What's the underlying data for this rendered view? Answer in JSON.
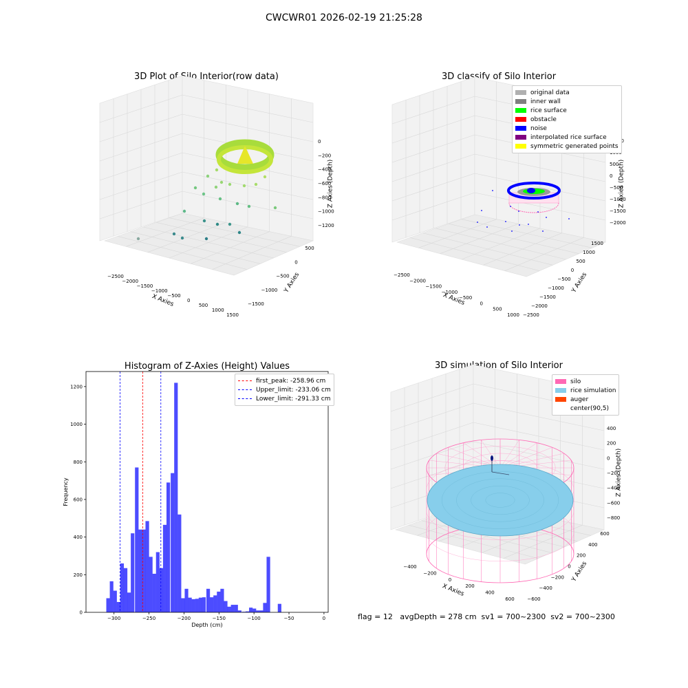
{
  "suptitle": "CWCWR01 2026-02-19 21:25:28",
  "panels": {
    "raw": {
      "title": "3D Plot of Silo Interior(row data)",
      "xlabel": "X Axies",
      "ylabel": "Y Axies",
      "zlabel": "Z Axies (Depth)",
      "xticks": [
        "−2500",
        "−2000",
        "−1500",
        "−1000",
        "−500",
        "0",
        "500",
        "1000",
        "1500"
      ],
      "yticks": [
        "500",
        "0",
        "−500",
        "−1000",
        "−1500"
      ],
      "zticks": [
        "0",
        "−200",
        "−400",
        "−600",
        "−800",
        "−1000",
        "−1200"
      ]
    },
    "classify": {
      "title": "3D classify of Silo Interior",
      "xlabel": "X Axies",
      "ylabel": "Y Axies",
      "zlabel": "Z Axies (Depth)",
      "xticks": [
        "−2500",
        "−2000",
        "−1500",
        "−1000",
        "−500",
        "0",
        "500",
        "1000"
      ],
      "yticks": [
        "1500",
        "1000",
        "500",
        "0",
        "−500",
        "−1000",
        "−1500",
        "−2000",
        "−2500"
      ],
      "zticks": [
        "1000",
        "500",
        "0",
        "−500",
        "−1000",
        "−1500",
        "−2000"
      ],
      "ztop_partial": "00",
      "legend": [
        {
          "label": "original data",
          "color": "#b0b0b0"
        },
        {
          "label": "inner wall",
          "color": "#808080"
        },
        {
          "label": "rice surface",
          "color": "#00ff00"
        },
        {
          "label": "obstacle",
          "color": "#ff0000"
        },
        {
          "label": "noise",
          "color": "#0000ff"
        },
        {
          "label": "interpolated rice surface",
          "color": "#800080"
        },
        {
          "label": "symmetric generated points",
          "color": "#ffff00"
        }
      ]
    },
    "simulation": {
      "title": "3D simulation of Silo Interior",
      "xlabel": "X Axies",
      "ylabel": "Y Axies",
      "zlabel": "Z Axies (Depth)",
      "xticks": [
        "−400",
        "−200",
        "0",
        "200",
        "400",
        "600"
      ],
      "yticks": [
        "600",
        "400",
        "200",
        "0",
        "−200",
        "−400",
        "−600"
      ],
      "zticks": [
        "400",
        "200",
        "0",
        "−200",
        "−400",
        "−600",
        "−800"
      ],
      "legend": [
        {
          "label": "silo",
          "color": "#ff69b4"
        },
        {
          "label": "rice simulation",
          "color": "#87ceeb"
        },
        {
          "label": "auger",
          "color": "#ff4500"
        },
        {
          "label": "center(90,5)",
          "color": ""
        }
      ]
    }
  },
  "status_line": "flag = 12   avgDepth = 278 cm  sv1 = 700~2300  sv2 = 700~2300",
  "chart_data": [
    {
      "type": "bar",
      "title": "Histogram of Z-Axies (Height) Values",
      "xlabel": "Depth (cm)",
      "ylabel": "Frequency",
      "xlim": [
        -340,
        6
      ],
      "ylim": [
        0,
        1280
      ],
      "xticks": [
        -300,
        -250,
        -200,
        -150,
        -100,
        -50,
        0
      ],
      "yticks": [
        0,
        200,
        400,
        600,
        800,
        1000,
        1200
      ],
      "bar_color": "#0000ff",
      "bin_width": 5.1,
      "bins": [
        {
          "x": -311,
          "value": 75
        },
        {
          "x": -306,
          "value": 165
        },
        {
          "x": -301,
          "value": 115
        },
        {
          "x": -296,
          "value": 55
        },
        {
          "x": -291,
          "value": 260
        },
        {
          "x": -286,
          "value": 235
        },
        {
          "x": -281,
          "value": 105
        },
        {
          "x": -276,
          "value": 420
        },
        {
          "x": -270,
          "value": 770
        },
        {
          "x": -265,
          "value": 440
        },
        {
          "x": -260,
          "value": 440
        },
        {
          "x": -255,
          "value": 485
        },
        {
          "x": -250,
          "value": 295
        },
        {
          "x": -245,
          "value": 205
        },
        {
          "x": -240,
          "value": 320
        },
        {
          "x": -235,
          "value": 235
        },
        {
          "x": -230,
          "value": 465
        },
        {
          "x": -225,
          "value": 690
        },
        {
          "x": -219,
          "value": 740
        },
        {
          "x": -214,
          "value": 1220
        },
        {
          "x": -209,
          "value": 520
        },
        {
          "x": -204,
          "value": 75
        },
        {
          "x": -199,
          "value": 125
        },
        {
          "x": -194,
          "value": 78
        },
        {
          "x": -189,
          "value": 70
        },
        {
          "x": -184,
          "value": 72
        },
        {
          "x": -179,
          "value": 78
        },
        {
          "x": -174,
          "value": 80
        },
        {
          "x": -168,
          "value": 125
        },
        {
          "x": -163,
          "value": 80
        },
        {
          "x": -158,
          "value": 90
        },
        {
          "x": -153,
          "value": 110
        },
        {
          "x": -148,
          "value": 125
        },
        {
          "x": -143,
          "value": 60
        },
        {
          "x": -138,
          "value": 30
        },
        {
          "x": -133,
          "value": 40
        },
        {
          "x": -128,
          "value": 40
        },
        {
          "x": -123,
          "value": 10
        },
        {
          "x": -117,
          "value": 3
        },
        {
          "x": -112,
          "value": 5
        },
        {
          "x": -107,
          "value": 25
        },
        {
          "x": -102,
          "value": 20
        },
        {
          "x": -97,
          "value": 10
        },
        {
          "x": -92,
          "value": 10
        },
        {
          "x": -87,
          "value": 50
        },
        {
          "x": -82,
          "value": 295
        },
        {
          "x": -66,
          "value": 45
        }
      ],
      "vlines": [
        {
          "label": "first_peak: -258.96 cm",
          "x": -258.96,
          "color": "#ff0000"
        },
        {
          "label": "Upper_limit: -233.06 cm",
          "x": -233.06,
          "color": "#0000ff"
        },
        {
          "label": "Lower_limit: -291.33 cm",
          "x": -291.33,
          "color": "#0000ff"
        }
      ]
    }
  ]
}
